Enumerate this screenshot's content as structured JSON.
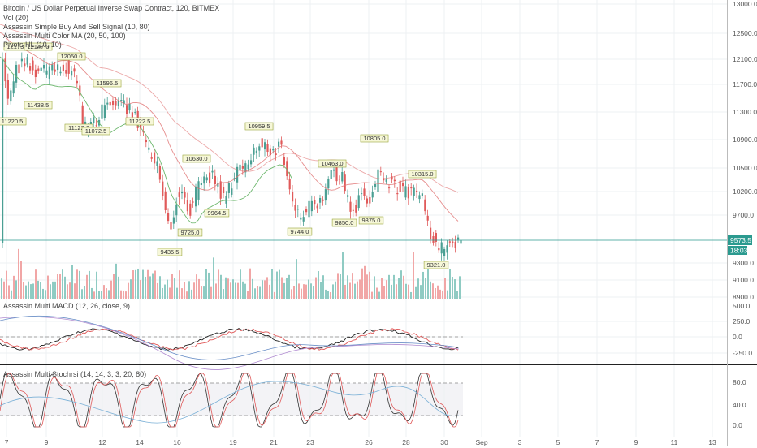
{
  "colors": {
    "up": "#4a9f93",
    "down": "#e05a5a",
    "vol_up": "#8fcbc3",
    "vol_down": "#f1a6a6",
    "ma_fast": "#e07070",
    "ma_slow": "#6fb86f",
    "price_tag": "#2b9a8f",
    "pivot_bg": "#f6f7d8",
    "pivot_border": "#9aa53a"
  },
  "header": {
    "title": "Bitcoin / US Dollar Perpetual Inverse Swap Contract, 120, BITMEX",
    "indicators": [
      "Vol (20)",
      "Assassin Simple Buy And Sell Signal (10, 80)",
      "Assassin Multi Color MA (20, 50, 100)",
      "Pivots HL (10, 10)"
    ]
  },
  "price_axis": {
    "labels": [
      "13000.0",
      "12500.0",
      "12100.0",
      "11700.0",
      "11300.0",
      "10900.0",
      "10500.0",
      "10200.0",
      "9700.0",
      "9300.0",
      "9100.0",
      "8900.0"
    ],
    "last_price": "9573.5",
    "countdown": "18:03"
  },
  "pivots": [
    "12173.0",
    "12147.0",
    "12050.0",
    "11438.5",
    "11220.5",
    "11596.5",
    "11122.0",
    "11072.5",
    "11222.5",
    "10959.5",
    "10630.0",
    "9964.5",
    "9725.0",
    "9435.5",
    "10463.0",
    "10805.0",
    "9744.0",
    "9850.0",
    "9875.0",
    "10315.0",
    "9321.0"
  ],
  "macd_panel": {
    "title": "Assassin Multi MACD (12, 26, close, 9)",
    "labels": [
      "500.0",
      "250.0",
      "0.0",
      "-250.0"
    ]
  },
  "stoch_panel": {
    "title": "Assassin Multi Stochrsi (14, 14, 3, 3, 20, 80)",
    "labels": [
      "80.0",
      "40.0",
      "0.0"
    ]
  },
  "time_axis": {
    "labels": [
      "7",
      "9",
      "12",
      "14",
      "16",
      "19",
      "21",
      "23",
      "26",
      "28",
      "30",
      "Sep",
      "3",
      "5",
      "7",
      "9",
      "11",
      "13"
    ]
  }
}
